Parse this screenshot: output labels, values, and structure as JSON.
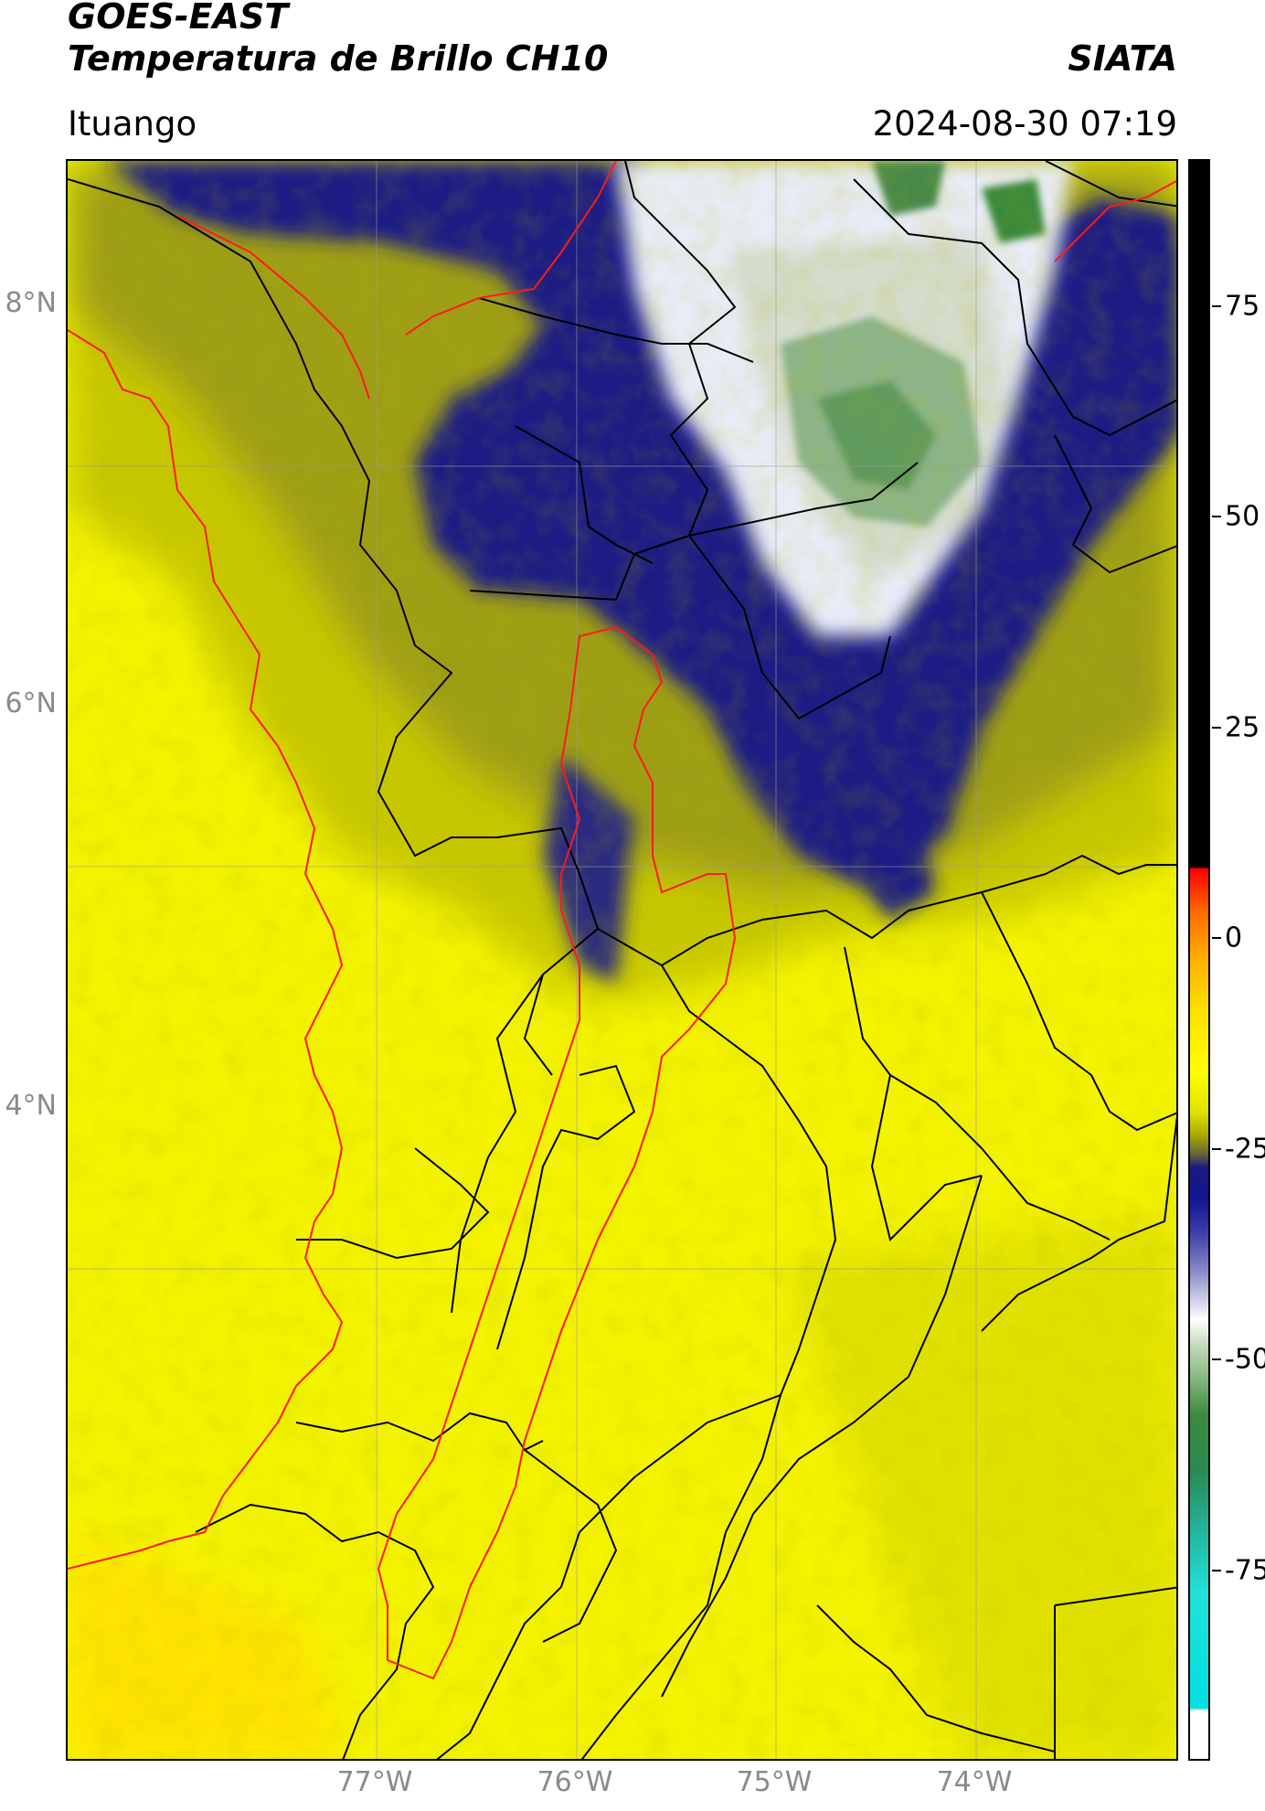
{
  "header": {
    "title_line1": "GOES-EAST",
    "title_line2": "Temperatura de Brillo CH10",
    "brand": "SIATA",
    "location": "Ituango",
    "datetime": "2024-08-30 07:19"
  },
  "map": {
    "latitude_labels": [
      "8°N",
      "6°N",
      "4°N"
    ],
    "longitude_labels": [
      "77°W",
      "76°W",
      "75°W",
      "74°W"
    ],
    "gridlines": true,
    "border_color": "#000000",
    "highlight_boundary_color": "#ff0000",
    "field_colors": {
      "warm": "#ffff00",
      "mid": "#d4d400",
      "dark_cloud": "#1a1a80",
      "white_cloud": "#ffffff",
      "cold_green": "#6a9c6a"
    }
  },
  "colorbar": {
    "tick_labels": [
      "75",
      "50",
      "25",
      "0",
      "-25",
      "-50",
      "-75"
    ]
  }
}
